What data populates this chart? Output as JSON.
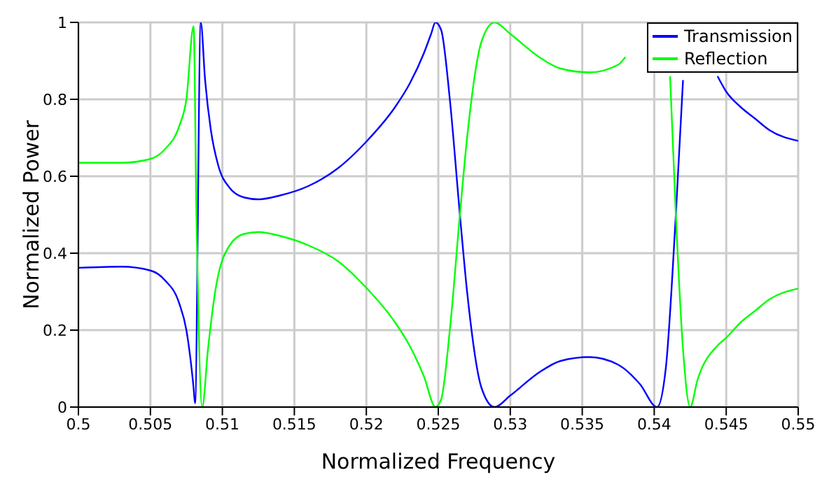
{
  "chart_data": {
    "type": "line",
    "xlabel": "Normalized Frequency",
    "ylabel": "Normalized Power",
    "xlim": [
      0.5,
      0.55
    ],
    "ylim": [
      0,
      1
    ],
    "xticks": [
      0.5,
      0.505,
      0.51,
      0.515,
      0.52,
      0.525,
      0.53,
      0.535,
      0.54,
      0.545,
      0.55
    ],
    "yticks": [
      0,
      0.2,
      0.4,
      0.6,
      0.8,
      1
    ],
    "grid": true,
    "legend": "top right",
    "marker": "none",
    "line_style": "solid",
    "series": [
      {
        "name": "Transmission",
        "color": "#0000ff",
        "x": [
          0.5,
          0.503,
          0.505,
          0.506,
          0.507,
          0.5075,
          0.508,
          0.5081,
          0.5085,
          0.5088,
          0.5092,
          0.5097,
          0.5105,
          0.5115,
          0.5125,
          0.514,
          0.516,
          0.518,
          0.52,
          0.522,
          0.523,
          0.524,
          0.5245,
          0.5248,
          0.5252,
          0.5258,
          0.5265,
          0.527,
          0.528,
          0.5289,
          0.53,
          0.532,
          0.5335,
          0.5355,
          0.5375,
          0.539,
          0.5402,
          0.5408,
          0.5415,
          0.542,
          0.5425,
          0.543,
          0.5444,
          0.545,
          0.546,
          0.547,
          0.548,
          0.55
        ],
        "values": [
          0.362,
          0.365,
          0.355,
          0.33,
          0.27,
          0.2,
          0.05,
          0.01,
          1.0,
          0.85,
          0.72,
          0.63,
          0.57,
          0.545,
          0.54,
          0.55,
          0.575,
          0.62,
          0.69,
          0.78,
          0.84,
          0.92,
          0.97,
          1.0,
          0.98,
          0.8,
          0.5,
          0.3,
          0.05,
          0.0,
          0.03,
          0.09,
          0.12,
          0.13,
          0.11,
          0.06,
          0.0,
          0.1,
          0.5,
          0.85,
          null,
          null,
          0.86,
          0.82,
          0.78,
          0.75,
          0.72,
          0.692
        ]
      },
      {
        "name": "Reflection",
        "color": "#00ff00",
        "x": [
          0.5,
          0.503,
          0.505,
          0.506,
          0.507,
          0.5075,
          0.508,
          0.5082,
          0.5086,
          0.509,
          0.5095,
          0.5105,
          0.5115,
          0.5125,
          0.514,
          0.516,
          0.518,
          0.52,
          0.522,
          0.523,
          0.524,
          0.5248,
          0.5252,
          0.5258,
          0.5265,
          0.527,
          0.528,
          0.5289,
          0.53,
          0.532,
          0.5335,
          0.5355,
          0.5375,
          0.538,
          0.5402,
          0.5408,
          0.5411,
          0.5415,
          0.542,
          0.5425,
          0.543,
          0.5444,
          0.545,
          0.546,
          0.547,
          0.548,
          0.55
        ],
        "values": [
          0.635,
          0.635,
          0.645,
          0.67,
          0.73,
          0.8,
          0.99,
          0.5,
          0.0,
          0.15,
          0.3,
          0.42,
          0.45,
          0.455,
          0.445,
          0.42,
          0.38,
          0.31,
          0.22,
          0.16,
          0.08,
          0.0,
          0.02,
          0.2,
          0.5,
          0.7,
          0.95,
          1.0,
          0.97,
          0.91,
          0.88,
          0.87,
          0.89,
          0.91,
          null,
          null,
          0.86,
          0.5,
          0.15,
          0.0,
          0.07,
          0.16,
          0.18,
          0.22,
          0.25,
          0.28,
          0.308
        ]
      }
    ]
  }
}
